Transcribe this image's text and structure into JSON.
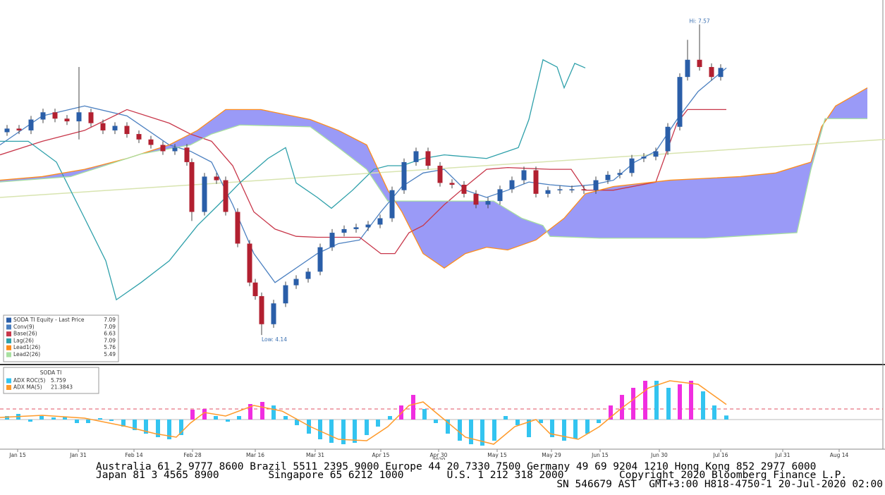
{
  "chart_data": [
    {
      "type": "candlestick",
      "name": "SODA TI Equity - Last Price",
      "last": 7.09,
      "up_color": "#2a5ea8",
      "down_color": "#b22030",
      "xlim": [
        0,
        125.5
      ],
      "ylim": [
        3.83,
        7.84
      ],
      "high_label": "Hi: 7.57",
      "low_label": "Low: 4.14",
      "x": [
        1.0,
        2.7,
        4.4,
        6.1,
        7.8,
        9.5,
        11.2,
        12.9,
        14.6,
        16.3,
        18.0,
        19.7,
        21.4,
        23.1,
        24.8,
        26.5,
        27.2,
        29.0,
        30.7,
        32.0,
        33.7,
        35.4,
        36.2,
        37.1,
        38.8,
        40.5,
        42.0,
        43.7,
        45.4,
        47.1,
        48.8,
        50.5,
        52.2,
        53.9,
        55.6,
        57.3,
        59.0,
        60.7,
        62.4,
        64.1,
        65.8,
        67.5,
        69.2,
        70.9,
        72.6,
        74.3,
        76.0,
        77.7,
        79.4,
        81.1,
        82.8,
        84.5,
        86.2,
        87.9,
        89.6,
        91.3,
        93.0,
        94.7,
        96.4,
        97.5,
        99.2,
        100.9,
        102.2
      ],
      "ohlc": [
        [
          6.38,
          6.46,
          6.34,
          6.42
        ],
        [
          6.42,
          6.46,
          6.36,
          6.4
        ],
        [
          6.4,
          6.56,
          6.36,
          6.52
        ],
        [
          6.52,
          6.64,
          6.48,
          6.6
        ],
        [
          6.6,
          6.64,
          6.49,
          6.53
        ],
        [
          6.53,
          6.57,
          6.46,
          6.5
        ],
        [
          6.5,
          7.1,
          6.3,
          6.6
        ],
        [
          6.6,
          6.64,
          6.44,
          6.48
        ],
        [
          6.48,
          6.52,
          6.36,
          6.4
        ],
        [
          6.4,
          6.49,
          6.36,
          6.45
        ],
        [
          6.45,
          6.49,
          6.32,
          6.36
        ],
        [
          6.36,
          6.4,
          6.26,
          6.3
        ],
        [
          6.3,
          6.34,
          6.2,
          6.24
        ],
        [
          6.24,
          6.28,
          6.13,
          6.17
        ],
        [
          6.17,
          6.25,
          6.13,
          6.21
        ],
        [
          6.21,
          6.25,
          6.01,
          6.05
        ],
        [
          6.05,
          6.09,
          5.4,
          5.5
        ],
        [
          5.5,
          5.93,
          5.46,
          5.89
        ],
        [
          5.89,
          5.93,
          5.81,
          5.85
        ],
        [
          5.85,
          5.89,
          5.46,
          5.5
        ],
        [
          5.5,
          5.54,
          5.11,
          5.15
        ],
        [
          5.15,
          5.19,
          4.68,
          4.72
        ],
        [
          4.72,
          4.76,
          4.53,
          4.57
        ],
        [
          4.57,
          4.61,
          4.14,
          4.26
        ],
        [
          4.26,
          4.53,
          4.22,
          4.49
        ],
        [
          4.49,
          4.73,
          4.45,
          4.69
        ],
        [
          4.69,
          4.8,
          4.65,
          4.76
        ],
        [
          4.76,
          4.88,
          4.72,
          4.84
        ],
        [
          4.84,
          5.15,
          4.8,
          5.11
        ],
        [
          5.11,
          5.31,
          5.07,
          5.27
        ],
        [
          5.27,
          5.35,
          5.23,
          5.31
        ],
        [
          5.31,
          5.37,
          5.27,
          5.33
        ],
        [
          5.33,
          5.4,
          5.29,
          5.36
        ],
        [
          5.36,
          5.47,
          5.32,
          5.43
        ],
        [
          5.43,
          5.78,
          5.39,
          5.74
        ],
        [
          5.74,
          6.09,
          5.7,
          6.05
        ],
        [
          6.05,
          6.21,
          6.01,
          6.17
        ],
        [
          6.17,
          6.21,
          5.97,
          6.01
        ],
        [
          6.01,
          6.05,
          5.78,
          5.82
        ],
        [
          5.82,
          5.86,
          5.76,
          5.8
        ],
        [
          5.8,
          5.84,
          5.66,
          5.7
        ],
        [
          5.7,
          5.74,
          5.54,
          5.58
        ],
        [
          5.58,
          5.66,
          5.54,
          5.62
        ],
        [
          5.62,
          5.79,
          5.58,
          5.75
        ],
        [
          5.75,
          5.89,
          5.71,
          5.85
        ],
        [
          5.85,
          6.0,
          5.81,
          5.96
        ],
        [
          5.96,
          6.0,
          5.66,
          5.7
        ],
        [
          5.7,
          5.78,
          5.66,
          5.74
        ],
        [
          5.74,
          5.79,
          5.7,
          5.75
        ],
        [
          5.75,
          5.79,
          5.71,
          5.75
        ],
        [
          5.75,
          5.79,
          5.7,
          5.74
        ],
        [
          5.74,
          5.89,
          5.7,
          5.85
        ],
        [
          5.85,
          5.95,
          5.81,
          5.91
        ],
        [
          5.91,
          5.97,
          5.87,
          5.93
        ],
        [
          5.93,
          6.13,
          5.89,
          6.09
        ],
        [
          6.09,
          6.15,
          6.05,
          6.11
        ],
        [
          6.11,
          6.21,
          6.07,
          6.17
        ],
        [
          6.17,
          6.48,
          6.13,
          6.44
        ],
        [
          6.44,
          7.03,
          6.4,
          6.99
        ],
        [
          6.99,
          7.4,
          6.95,
          7.18
        ],
        [
          7.18,
          7.57,
          7.06,
          7.1
        ],
        [
          7.1,
          7.14,
          6.95,
          6.99
        ],
        [
          6.99,
          7.13,
          6.95,
          7.09
        ]
      ],
      "cloud_color": "#9a9af7",
      "trendline": {
        "color": "#d8e4b0",
        "x": [
          0,
          125.5
        ],
        "values": [
          5.66,
          6.3
        ]
      },
      "series": [
        {
          "name": "Conv(9)",
          "color": "#4a7fc0",
          "last": 7.09,
          "x": [
            0,
            6,
            12,
            18,
            24,
            27,
            30,
            33,
            36,
            39,
            42,
            45,
            48,
            51,
            54,
            57,
            60,
            63,
            66,
            69,
            72,
            75,
            78,
            81,
            84,
            87,
            90,
            93,
            96,
            99,
            103
          ],
          "values": [
            6.24,
            6.56,
            6.67,
            6.56,
            6.24,
            6.17,
            6.05,
            5.58,
            5.04,
            4.72,
            4.88,
            5.04,
            5.15,
            5.19,
            5.5,
            5.78,
            5.93,
            5.97,
            5.74,
            5.66,
            5.74,
            5.83,
            5.8,
            5.78,
            5.8,
            5.85,
            6.05,
            6.17,
            6.52,
            6.83,
            7.09
          ]
        },
        {
          "name": "Base(26)",
          "color": "#c8374a",
          "last": 6.63,
          "x": [
            0,
            6,
            12,
            18,
            24,
            27,
            30,
            33,
            36,
            39,
            42,
            45,
            51,
            54,
            56,
            58,
            60,
            63,
            66,
            69,
            72,
            78,
            81,
            83,
            87,
            93,
            96,
            97.5,
            103
          ],
          "values": [
            6.13,
            6.28,
            6.4,
            6.63,
            6.48,
            6.36,
            6.28,
            6.01,
            5.5,
            5.31,
            5.23,
            5.22,
            5.22,
            5.04,
            5.04,
            5.27,
            5.35,
            5.58,
            5.78,
            5.97,
            5.99,
            5.97,
            5.97,
            5.74,
            5.74,
            5.83,
            6.48,
            6.63,
            6.63
          ]
        },
        {
          "name": "Lag(26)",
          "color": "#2ea0aa",
          "last": 7.09,
          "x": [
            0,
            4,
            8,
            12,
            15,
            16.5,
            20,
            24,
            28,
            31,
            34,
            38,
            40.5,
            42,
            45,
            47,
            50,
            53,
            55,
            57,
            60,
            63,
            69,
            72,
            73.5,
            75,
            77,
            79,
            80,
            81.5,
            83
          ],
          "values": [
            6.28,
            6.28,
            6.05,
            5.43,
            4.96,
            4.53,
            4.72,
            4.96,
            5.35,
            5.58,
            5.82,
            6.09,
            6.21,
            5.82,
            5.66,
            5.54,
            5.74,
            5.97,
            6.01,
            6.01,
            6.09,
            6.13,
            6.09,
            6.17,
            6.21,
            6.52,
            7.18,
            7.1,
            6.87,
            7.14,
            7.09
          ]
        },
        {
          "name": "Lead1(26)",
          "color": "#ff8c1a",
          "last": 5.76,
          "x": [
            0,
            6,
            12,
            18,
            24,
            28,
            32,
            37,
            44,
            48,
            52,
            55,
            57,
            60,
            63,
            66,
            69,
            72,
            76,
            80,
            83,
            87,
            95,
            105,
            110,
            115,
            116.5,
            118.5,
            123
          ],
          "values": [
            5.85,
            5.89,
            5.97,
            6.09,
            6.24,
            6.4,
            6.63,
            6.63,
            6.52,
            6.4,
            6.24,
            5.74,
            5.5,
            5.04,
            4.88,
            5.04,
            5.11,
            5.08,
            5.19,
            5.43,
            5.7,
            5.78,
            5.85,
            5.89,
            5.93,
            6.05,
            6.44,
            6.67,
            6.87
          ]
        },
        {
          "name": "Lead2(26)",
          "color": "#a8e0a0",
          "last": 5.49,
          "x": [
            0,
            10,
            20,
            27,
            30,
            34,
            44,
            48,
            52,
            55,
            70,
            74,
            77,
            78,
            85,
            100,
            113,
            115,
            117,
            123
          ],
          "values": [
            5.83,
            5.89,
            6.14,
            6.24,
            6.36,
            6.46,
            6.44,
            6.21,
            5.97,
            5.62,
            5.62,
            5.43,
            5.35,
            5.23,
            5.21,
            5.21,
            5.27,
            5.97,
            6.53,
            6.53
          ]
        }
      ]
    },
    {
      "type": "bar",
      "title": "SODA TI",
      "xlim": [
        0,
        125.5
      ],
      "ylim": [
        -40,
        75
      ],
      "hlines": [
        {
          "value": 0,
          "color": "#bbbbbb",
          "dashed": false
        },
        {
          "value": 15,
          "color": "#e05060",
          "dashed": true
        }
      ],
      "xticks": [
        {
          "value": 2.5,
          "label": "Jan 15"
        },
        {
          "value": 11.1,
          "label": "Jan 31"
        },
        {
          "value": 19.0,
          "label": "Feb 14"
        },
        {
          "value": 27.3,
          "label": "Feb 28"
        },
        {
          "value": 36.2,
          "label": "Mar 16"
        },
        {
          "value": 44.7,
          "label": "Mar 31"
        },
        {
          "value": 54.0,
          "label": "Apr 15"
        },
        {
          "value": 62.2,
          "label": "Apr 30"
        },
        {
          "value": 70.5,
          "label": "May 15"
        },
        {
          "value": 78.2,
          "label": "May 29"
        },
        {
          "value": 85.1,
          "label": "Jun 15"
        },
        {
          "value": 93.5,
          "label": "Jun 30"
        },
        {
          "value": 102.2,
          "label": "Jul 16"
        },
        {
          "value": 111.0,
          "label": "Jul 31"
        },
        {
          "value": 119.0,
          "label": "Aug 14"
        }
      ],
      "year": {
        "value": 62.2,
        "label": "2020"
      },
      "x": [
        1.0,
        2.6,
        4.3,
        5.9,
        7.6,
        9.2,
        10.9,
        12.5,
        14.2,
        15.8,
        17.5,
        19.1,
        20.7,
        22.4,
        24.0,
        25.7,
        27.3,
        29.0,
        30.6,
        32.3,
        33.9,
        35.5,
        37.2,
        38.8,
        40.5,
        42.1,
        43.8,
        45.4,
        47.0,
        48.7,
        50.3,
        52.0,
        53.6,
        55.3,
        56.9,
        58.6,
        60.2,
        61.8,
        63.5,
        65.2,
        66.8,
        68.4,
        70.1,
        71.7,
        73.4,
        75.0,
        76.7,
        78.3,
        80.0,
        81.6,
        83.3,
        84.9,
        86.6,
        88.2,
        89.8,
        91.5,
        93.1,
        94.8,
        96.4,
        98.0,
        99.7,
        101.3,
        103.0
      ],
      "series": [
        {
          "name": "ADX ROC(5)",
          "color": "#33c4f0",
          "highlight_color": "#f02ee0",
          "values": [
            5,
            8,
            -3,
            5,
            3,
            4,
            -5,
            -5,
            2,
            -2,
            -10,
            -15,
            -20,
            -25,
            -28,
            -22,
            14,
            15,
            5,
            -3,
            5,
            22,
            25,
            20,
            5,
            -8,
            -20,
            -28,
            -33,
            -35,
            -33,
            -22,
            -10,
            5,
            20,
            35,
            15,
            -5,
            -20,
            -30,
            -35,
            -37,
            -30,
            5,
            -8,
            -25,
            -5,
            -25,
            -30,
            -27,
            -20,
            -5,
            20,
            35,
            45,
            55,
            55,
            45,
            50,
            55,
            40,
            20,
            5.759
          ]
        },
        {
          "name": "ADX MA(5)",
          "type": "line",
          "color": "#ff9a2a",
          "x": [
            0,
            6,
            12,
            18,
            22,
            25,
            27,
            29,
            32,
            36,
            40,
            44,
            48,
            52,
            55,
            58,
            60,
            63,
            66,
            70,
            73,
            76,
            78,
            82,
            85,
            88,
            92,
            95,
            99,
            103
          ],
          "values": [
            3,
            6,
            2,
            -10,
            -20,
            -25,
            -5,
            10,
            5,
            20,
            12,
            -10,
            -28,
            -30,
            -10,
            20,
            25,
            0,
            -25,
            -35,
            -10,
            0,
            -20,
            -28,
            -10,
            15,
            45,
            55,
            50,
            21.3843
          ]
        }
      ]
    },
    {
      "type": "text",
      "footer": [
        "Australia 61 2 9777 8600 Brazil 5511 2395 9000 Europe 44 20 7330 7500 Germany 49 69 9204 1210 Hong Kong 852 2977 6000",
        "Japan 81 3 4565 8900        Singapore 65 6212 1000       U.S. 1 212 318 2000         Copyright 2020 Bloomberg Finance L.P.",
        "SN 546679 AST  GMT+3:00 H818-4750-1 20-Jul-2020 02:00"
      ]
    }
  ]
}
